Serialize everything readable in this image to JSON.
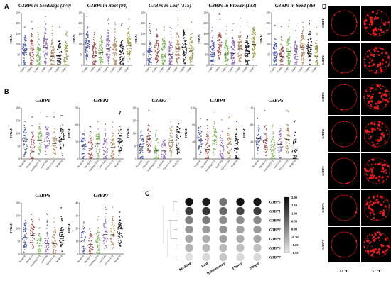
{
  "panel_letters": {
    "A": "A",
    "B": "B",
    "C": "C",
    "D": "D"
  },
  "series_colors": [
    "#4f5aa8",
    "#a05252",
    "#7ab356",
    "#8d6bb5",
    "#b28a63",
    "#222222",
    "#9c9c4c"
  ],
  "panel_A": {
    "y_label": "FPKM",
    "y_ticks": [
      "0",
      "50",
      "100",
      "150",
      "200",
      "250"
    ],
    "categories": [
      "G3BP1",
      "G3BP2",
      "G3BP3",
      "G3BP4",
      "G3BP5",
      "G3BP6",
      "G3BP7"
    ],
    "charts": [
      {
        "title": "G3BPs in Seedlings (370)"
      },
      {
        "title": "G3BPs in Root (94)"
      },
      {
        "title": "G3BPs in Leaf (315)"
      },
      {
        "title": "G3BPs in Flower (133)"
      },
      {
        "title": "G3BPs in Seed (36)"
      }
    ]
  },
  "panel_B": {
    "y_label": "FPKM",
    "categories": [
      "Root(94)",
      "Shoot(41)",
      "Seedling(370)",
      "Leaf(315)",
      "Flower(133)",
      "Seed(36)"
    ],
    "charts": [
      {
        "title": "G3BP1",
        "y_ticks": [
          "0",
          "50",
          "100",
          "150",
          "200"
        ]
      },
      {
        "title": "G3BP2",
        "y_ticks": [
          "0",
          "50",
          "100",
          "150"
        ]
      },
      {
        "title": "G3BP3",
        "y_ticks": [
          "0",
          "50",
          "100",
          "150",
          "200"
        ]
      },
      {
        "title": "G3BP4",
        "y_ticks": [
          "0",
          "40",
          "80",
          "120"
        ]
      },
      {
        "title": "G3BP5",
        "y_ticks": [
          "0",
          "40",
          "80",
          "120"
        ]
      },
      {
        "title": "G3BP6",
        "y_ticks": [
          "0",
          "50",
          "100",
          "150",
          "200"
        ]
      },
      {
        "title": "G3BP7",
        "y_ticks": [
          "0",
          "10",
          "20",
          "30",
          "40"
        ]
      }
    ]
  },
  "panel_C": {
    "columns": [
      "Seedling",
      "Leaf",
      "Inflorescence",
      "Flower",
      "Silique"
    ],
    "rows": [
      "G3BP5",
      "G3BP1",
      "G3BP4",
      "G3BP2",
      "G3BP3",
      "G3BP6",
      "G3BP7"
    ],
    "values": [
      [
        1.9,
        1.7,
        0.3,
        1.9,
        1.8
      ],
      [
        1.2,
        1.3,
        0.5,
        1.1,
        1.2
      ],
      [
        0.1,
        0.2,
        -0.1,
        -0.1,
        0.0
      ],
      [
        -0.2,
        -0.3,
        -0.2,
        -0.4,
        -0.3
      ],
      [
        -0.5,
        -0.6,
        -0.4,
        -0.6,
        -0.5
      ],
      [
        -0.7,
        -0.8,
        -0.8,
        -0.9,
        -0.9
      ],
      [
        -1.4,
        -1.3,
        -1.0,
        -1.3,
        -1.3
      ]
    ],
    "scale_labels": [
      "2.00",
      "1.50",
      "1.00",
      "0.50",
      "0.00",
      "-0.50",
      "-1.00",
      "-1.50"
    ]
  },
  "panel_D": {
    "rows": [
      "G3BP1",
      "G3BP2",
      "G3BP3",
      "G3BP4",
      "G3BP5",
      "G3BP6",
      "G3BP7"
    ],
    "columns": [
      "22 °C",
      "37 °C"
    ]
  }
}
